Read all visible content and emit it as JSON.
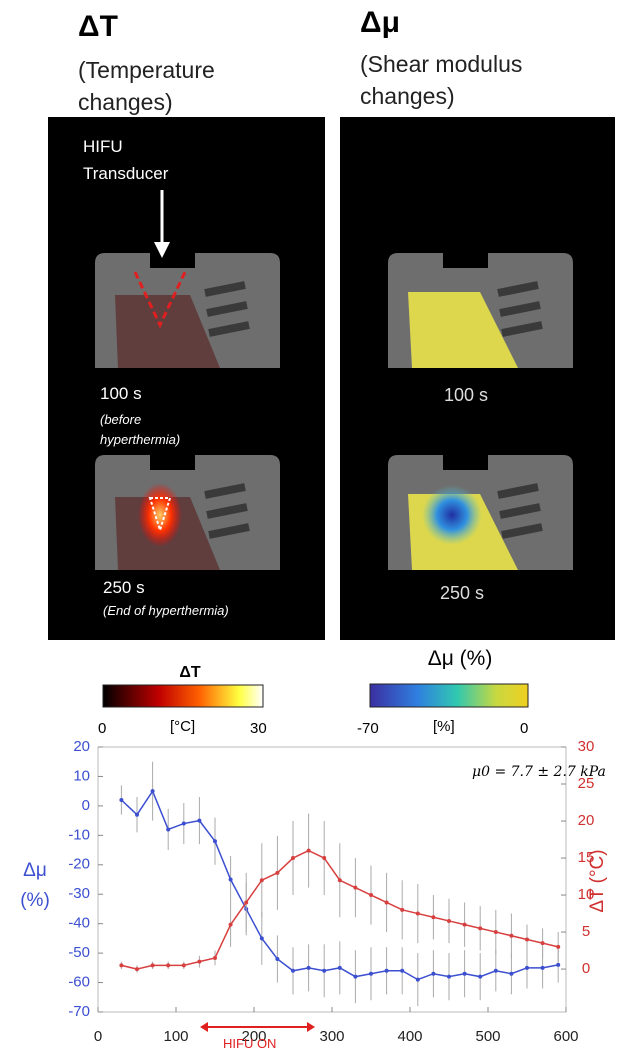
{
  "panels": [
    {
      "title": "ΔT",
      "subtitle": "(Temperature changes)",
      "transducer_label": "HIFU Transducer",
      "labels": [
        {
          "time": "100 s",
          "note": "(before hyperthermia)"
        },
        {
          "time": "250 s",
          "note": "(End of hyperthermia)"
        }
      ]
    },
    {
      "title": "Δμ",
      "subtitle": "(Shear modulus changes)",
      "labels": [
        {
          "time": "100 s"
        },
        {
          "time": "250 s"
        }
      ]
    }
  ],
  "colorbars": [
    {
      "title": "ΔT",
      "min": 0,
      "unit": "[°C]",
      "max": 30
    },
    {
      "title": "Δμ (%)",
      "min": -70,
      "unit": "[%]",
      "max": 0
    }
  ],
  "chart_data": {
    "type": "line",
    "ylabel": "Δμ (%)",
    "y2label": "ΔT (°C)",
    "annotation": "μ0 = 7.7 ± 2.7 kPa",
    "x_annotation": "HIFU ON",
    "x": [
      30,
      50,
      70,
      90,
      110,
      130,
      150,
      170,
      190,
      210,
      230,
      250,
      270,
      290,
      310,
      330,
      350,
      370,
      390,
      410,
      430,
      450,
      470,
      490,
      510,
      530,
      550,
      570,
      590
    ],
    "series": [
      {
        "name": "Δμ",
        "color": "#3b4fd0",
        "axis": "y",
        "values": [
          2,
          -3,
          5,
          -8,
          -6,
          -5,
          -12,
          -25,
          -35,
          -45,
          -52,
          -56,
          -55,
          -56,
          -55,
          -58,
          -57,
          -56,
          -56,
          -59,
          -57,
          -58,
          -57,
          -58,
          -56,
          -57,
          -55,
          -55,
          -54
        ],
        "errors": [
          5,
          6,
          10,
          7,
          7,
          8,
          8,
          8,
          9,
          9,
          8,
          8,
          8,
          9,
          9,
          9,
          9,
          8,
          8,
          9,
          8,
          8,
          8,
          8,
          7,
          7,
          7,
          7,
          6
        ]
      },
      {
        "name": "ΔT",
        "color": "#d84040",
        "axis": "y2",
        "values": [
          0.5,
          0,
          0.5,
          0.5,
          0.5,
          1,
          1.5,
          6,
          9,
          12,
          13,
          15,
          16,
          15,
          12,
          11,
          10,
          9,
          8,
          7.5,
          7,
          6.5,
          6,
          5.5,
          5,
          4.5,
          4,
          3.5,
          3
        ],
        "errors": [
          0.5,
          0.5,
          0.5,
          0.5,
          0.5,
          0.8,
          1,
          3,
          4,
          5,
          5,
          5,
          5,
          5,
          5,
          4,
          4,
          4,
          4,
          4,
          3,
          3,
          3,
          3,
          3,
          3,
          2,
          2,
          2
        ]
      }
    ],
    "xlim": [
      0,
      600
    ],
    "xticks": [
      0,
      100,
      200,
      300,
      400,
      500,
      600
    ],
    "ylim": [
      -70,
      20
    ],
    "yticks": [
      -70,
      -60,
      -50,
      -40,
      -30,
      -20,
      -10,
      0,
      10,
      20
    ],
    "y2lim": [
      -5.8,
      30
    ],
    "y2ticks": [
      0,
      5,
      10,
      15,
      20,
      25,
      30
    ]
  }
}
